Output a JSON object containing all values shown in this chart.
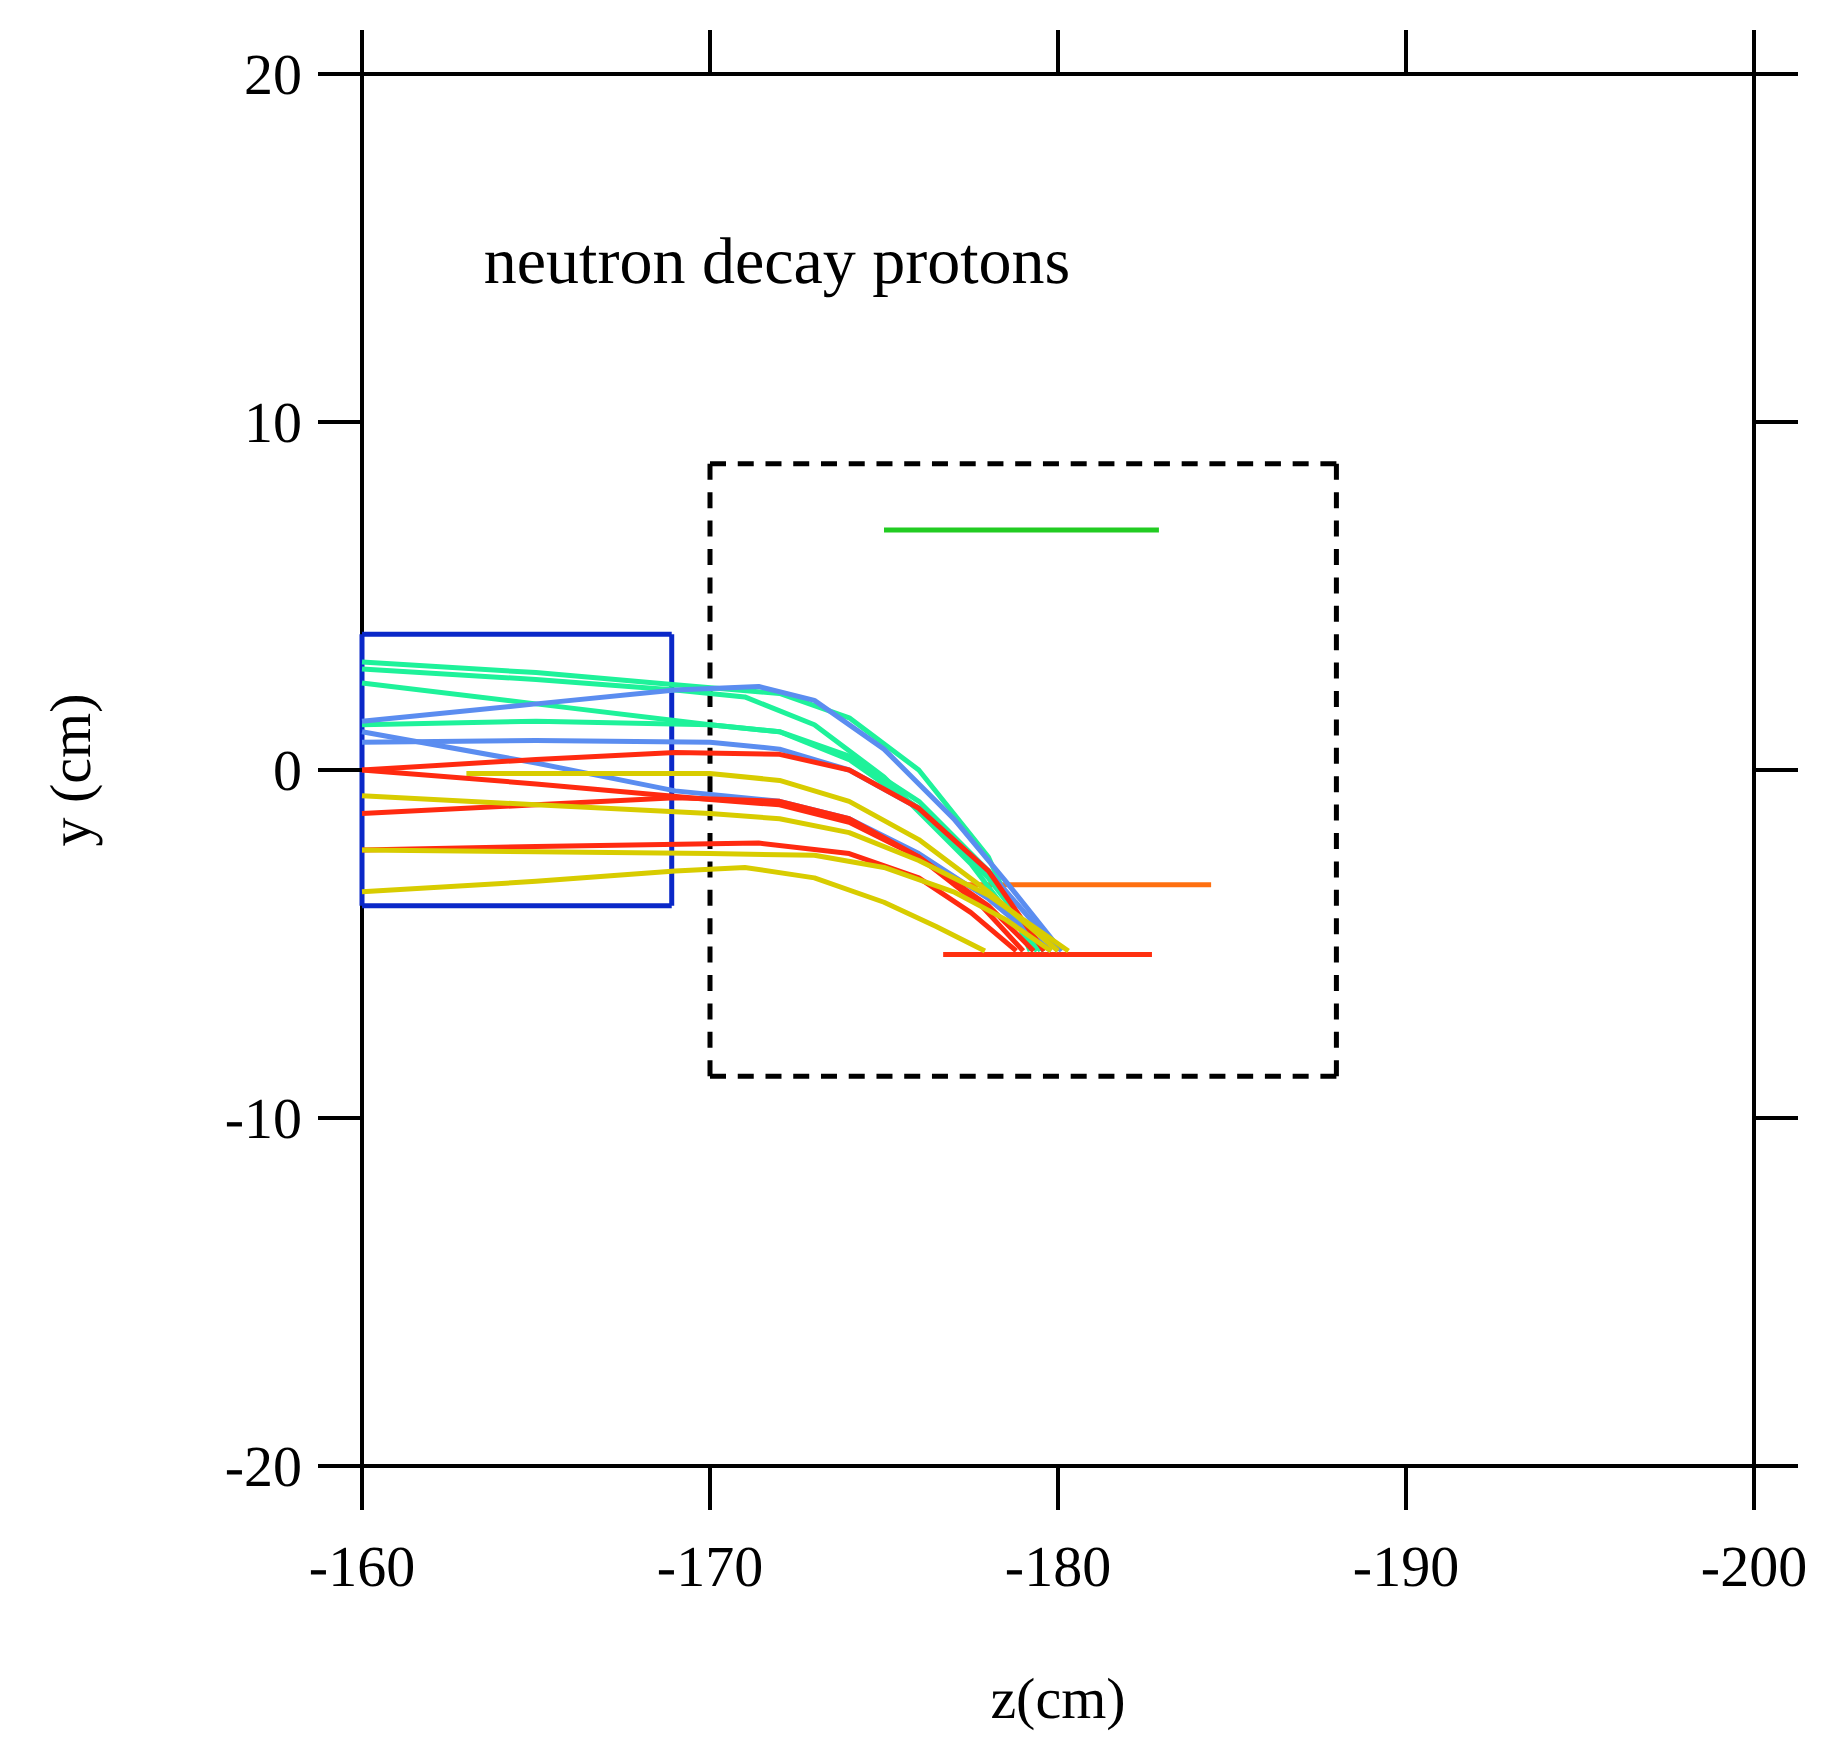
{
  "chart_data": {
    "type": "line",
    "title": "neutron decay protons",
    "xlabel": "z(cm)",
    "ylabel": "y (cm)",
    "xlim": [
      -160,
      -200
    ],
    "ylim": [
      -20,
      20
    ],
    "xticks": [
      -160,
      -170,
      -180,
      -190,
      -200
    ],
    "yticks": [
      -20,
      -10,
      0,
      10,
      20
    ],
    "grid": false,
    "legend": false,
    "marker": "none",
    "series": [
      {
        "color": "#0a28c8",
        "line_style": "solid",
        "x": [
          -160,
          -168.9
        ],
        "values": [
          3.9,
          3.9
        ]
      },
      {
        "color": "#0a28c8",
        "line_style": "solid",
        "x": [
          -168.9,
          -168.9
        ],
        "values": [
          3.9,
          -3.9
        ]
      },
      {
        "color": "#0a28c8",
        "line_style": "solid",
        "x": [
          -160,
          -168.9
        ],
        "values": [
          -3.9,
          -3.9
        ]
      },
      {
        "color": "#0a28c8",
        "line_style": "solid",
        "x": [
          -160,
          -160
        ],
        "values": [
          3.9,
          -3.9
        ]
      },
      {
        "color": "#000000",
        "line_style": "dashed",
        "x": [
          -170,
          -188
        ],
        "values": [
          8.8,
          8.8
        ]
      },
      {
        "color": "#000000",
        "line_style": "dashed",
        "x": [
          -188,
          -188
        ],
        "values": [
          8.8,
          -8.8
        ]
      },
      {
        "color": "#000000",
        "line_style": "dashed",
        "x": [
          -170,
          -188
        ],
        "values": [
          -8.8,
          -8.8
        ]
      },
      {
        "color": "#000000",
        "line_style": "dashed",
        "x": [
          -170,
          -170
        ],
        "values": [
          8.8,
          -8.8
        ]
      },
      {
        "color": "#22cc22",
        "line_style": "solid",
        "x": [
          -175,
          -182.9
        ],
        "values": [
          6.9,
          6.9
        ]
      },
      {
        "color": "#ff7010",
        "line_style": "solid",
        "x": [
          -177,
          -184.4
        ],
        "values": [
          -3.3,
          -3.3
        ]
      },
      {
        "color": "#ff3010",
        "line_style": "solid",
        "x": [
          -176.7,
          -182.7
        ],
        "values": [
          -5.3,
          -5.3
        ]
      },
      {
        "color": "#1ef29a",
        "line_style": "solid",
        "x": [
          -160,
          -165,
          -169,
          -172,
          -174,
          -176,
          -178,
          -179.2
        ],
        "values": [
          3.1,
          2.8,
          2.45,
          2.2,
          1.5,
          0,
          -2.5,
          -5.2
        ]
      },
      {
        "color": "#1ef29a",
        "line_style": "solid",
        "x": [
          -160,
          -165,
          -169,
          -171,
          -173,
          -175,
          -177.5,
          -179.4
        ],
        "values": [
          2.9,
          2.6,
          2.3,
          2.1,
          1.3,
          -0.2,
          -2.7,
          -5.2
        ]
      },
      {
        "color": "#1ef29a",
        "line_style": "solid",
        "x": [
          -160,
          -165,
          -170,
          -172,
          -174,
          -176,
          -178,
          -179.5
        ],
        "values": [
          2.5,
          1.9,
          1.3,
          1.1,
          0.4,
          -0.9,
          -2.9,
          -5.2
        ]
      },
      {
        "color": "#1ef29a",
        "line_style": "solid",
        "x": [
          -160,
          -165,
          -170,
          -172,
          -174,
          -176,
          -178,
          -179.6
        ],
        "values": [
          1.3,
          1.4,
          1.3,
          1.1,
          0.3,
          -1.1,
          -3.1,
          -5.2
        ]
      },
      {
        "color": "#5b8df0",
        "line_style": "solid",
        "x": [
          -160,
          -165,
          -169,
          -171.4,
          -173,
          -175,
          -177,
          -178.5,
          -180.1
        ],
        "values": [
          1.4,
          1.9,
          2.3,
          2.4,
          2.0,
          0.6,
          -1.4,
          -3.2,
          -5.2
        ]
      },
      {
        "color": "#5b8df0",
        "line_style": "solid",
        "x": [
          -160,
          -165,
          -170,
          -172,
          -174,
          -176,
          -178,
          -180
        ],
        "values": [
          0.8,
          0.85,
          0.8,
          0.6,
          0,
          -1.1,
          -2.9,
          -5.2
        ]
      },
      {
        "color": "#5b8df0",
        "line_style": "solid",
        "x": [
          -160,
          -165,
          -169,
          -172,
          -174,
          -176,
          -178,
          -179.8
        ],
        "values": [
          1.1,
          0.2,
          -0.6,
          -0.9,
          -1.4,
          -2.4,
          -3.7,
          -5.2
        ]
      },
      {
        "color": "#ff2a10",
        "line_style": "solid",
        "x": [
          -160,
          -165,
          -169,
          -172,
          -174,
          -176,
          -178,
          -179.6
        ],
        "values": [
          0,
          0.3,
          0.5,
          0.45,
          0,
          -1.1,
          -2.9,
          -5.2
        ]
      },
      {
        "color": "#ff2a10",
        "line_style": "solid",
        "x": [
          -160,
          -165,
          -170,
          -172,
          -174,
          -176,
          -178,
          -179.3
        ],
        "values": [
          0,
          -0.4,
          -0.85,
          -1.0,
          -1.5,
          -2.5,
          -3.9,
          -5.2
        ]
      },
      {
        "color": "#ff2a10",
        "line_style": "solid",
        "x": [
          -160,
          -165,
          -169,
          -172,
          -174,
          -176,
          -177.8,
          -179
        ],
        "values": [
          -1.25,
          -1.0,
          -0.8,
          -0.9,
          -1.4,
          -2.5,
          -3.9,
          -5.2
        ]
      },
      {
        "color": "#ff2a10",
        "line_style": "solid",
        "x": [
          -160,
          -165,
          -171.4,
          -174,
          -176,
          -177.5,
          -178.8
        ],
        "values": [
          -2.3,
          -2.2,
          -2.1,
          -2.4,
          -3.1,
          -4.1,
          -5.2
        ]
      },
      {
        "color": "#d8cc00",
        "line_style": "solid",
        "x": [
          -160,
          -165,
          -170,
          -172,
          -174,
          -176,
          -178,
          -180.3
        ],
        "values": [
          -0.74,
          -1.0,
          -1.25,
          -1.4,
          -1.8,
          -2.6,
          -3.6,
          -5.2
        ]
      },
      {
        "color": "#d8cc00",
        "line_style": "solid",
        "x": [
          -163,
          -166,
          -170,
          -172,
          -174,
          -176,
          -178,
          -180
        ],
        "values": [
          -0.1,
          -0.1,
          -0.1,
          -0.3,
          -0.9,
          -2.0,
          -3.5,
          -5.2
        ]
      },
      {
        "color": "#d8cc00",
        "line_style": "solid",
        "x": [
          -160,
          -165,
          -170,
          -173,
          -175,
          -177,
          -178.5,
          -179.8
        ],
        "values": [
          -2.3,
          -2.35,
          -2.4,
          -2.45,
          -2.8,
          -3.5,
          -4.3,
          -5.2
        ]
      },
      {
        "color": "#d8cc00",
        "line_style": "solid",
        "x": [
          -160,
          -165,
          -169,
          -171,
          -173,
          -175,
          -176.5,
          -177.9
        ],
        "values": [
          -3.5,
          -3.2,
          -2.9,
          -2.8,
          -3.1,
          -3.8,
          -4.5,
          -5.2
        ]
      }
    ]
  }
}
